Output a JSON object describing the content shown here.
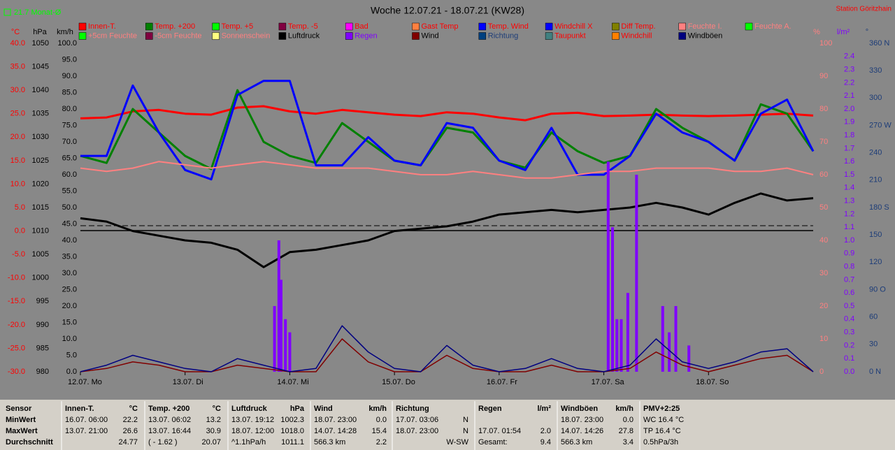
{
  "chart_data": {
    "type": "line",
    "title": "Woche 12.07.21 - 18.07.21 (KW28)",
    "station": "Station Göritzhain",
    "month_avg": "21.7 Monat-Ø",
    "xlim": [
      0,
      168
    ],
    "xticks": [
      {
        "value": 0,
        "label": "12.07. Mo"
      },
      {
        "value": 24,
        "label": "13.07. Di"
      },
      {
        "value": 48,
        "label": "14.07. Mi"
      },
      {
        "value": 72,
        "label": "15.07. Do"
      },
      {
        "value": 96,
        "label": "16.07. Fr"
      },
      {
        "value": 120,
        "label": "17.07. Sa"
      },
      {
        "value": 144,
        "label": "18.07. So"
      }
    ],
    "x": [
      0,
      6,
      12,
      18,
      24,
      30,
      36,
      42,
      48,
      54,
      60,
      66,
      72,
      78,
      84,
      90,
      96,
      102,
      108,
      114,
      120,
      126,
      132,
      138,
      144,
      150,
      156,
      162,
      168
    ],
    "grid": false,
    "yaxes": {
      "temp": {
        "unit": "°C",
        "color": "#ff0000",
        "lim": [
          -30,
          40
        ],
        "ticks": [
          {
            "value": 40,
            "label": "40.0"
          },
          {
            "value": 35,
            "label": "35.0"
          },
          {
            "value": 30,
            "label": "30.0"
          },
          {
            "value": 25,
            "label": "25.0"
          },
          {
            "value": 20,
            "label": "20.0"
          },
          {
            "value": 15,
            "label": "15.0"
          },
          {
            "value": 10,
            "label": "10.0"
          },
          {
            "value": 5,
            "label": "5.0"
          },
          {
            "value": 0,
            "label": "0.0"
          },
          {
            "value": -5,
            "label": "-5.0"
          },
          {
            "value": -10,
            "label": "-10.0"
          },
          {
            "value": -15,
            "label": "-15.0"
          },
          {
            "value": -20,
            "label": "-20.0"
          },
          {
            "value": -25,
            "label": "-25.0"
          },
          {
            "value": -30,
            "label": "-30.0"
          }
        ]
      },
      "pressure": {
        "unit": "hPa",
        "color": "#000000",
        "lim": [
          980,
          1050
        ],
        "ticks": [
          1050,
          1045,
          1040,
          1035,
          1030,
          1025,
          1020,
          1015,
          1010,
          1005,
          1000,
          995,
          990,
          985,
          980
        ]
      },
      "kmh": {
        "unit": "km/h",
        "color": "#000000",
        "lim": [
          0,
          100
        ],
        "ticks": [
          {
            "value": 100,
            "label": "100.0"
          },
          {
            "value": 95,
            "label": "95.0"
          },
          {
            "value": 90,
            "label": "90.0"
          },
          {
            "value": 85,
            "label": "85.0"
          },
          {
            "value": 80,
            "label": "80.0"
          },
          {
            "value": 75,
            "label": "75.0"
          },
          {
            "value": 70,
            "label": "70.0"
          },
          {
            "value": 65,
            "label": "65.0"
          },
          {
            "value": 60,
            "label": "60.0"
          },
          {
            "value": 55,
            "label": "55.0"
          },
          {
            "value": 50,
            "label": "50.0"
          },
          {
            "value": 45,
            "label": "45.0"
          },
          {
            "value": 40,
            "label": "40.0"
          },
          {
            "value": 35,
            "label": "35.0"
          },
          {
            "value": 30,
            "label": "30.0"
          },
          {
            "value": 25,
            "label": "25.0"
          },
          {
            "value": 20,
            "label": "20.0"
          },
          {
            "value": 15,
            "label": "15.0"
          },
          {
            "value": 10,
            "label": "10.0"
          },
          {
            "value": 5,
            "label": "5.0"
          },
          {
            "value": 0,
            "label": "0.0"
          }
        ]
      },
      "pct": {
        "unit": "%",
        "color": "#ff8080",
        "lim": [
          0,
          100
        ],
        "ticks": [
          100,
          90,
          80,
          70,
          60,
          50,
          40,
          30,
          20,
          10,
          0
        ]
      },
      "rain": {
        "unit": "l/m²",
        "color": "#8000ff",
        "lim": [
          0,
          2.5
        ],
        "ticks": [
          {
            "value": 2.4,
            "label": "2.4"
          },
          {
            "value": 2.3,
            "label": "2.3"
          },
          {
            "value": 2.2,
            "label": "2.2"
          },
          {
            "value": 2.1,
            "label": "2.1"
          },
          {
            "value": 2,
            "label": "2.0"
          },
          {
            "value": 1.9,
            "label": "1.9"
          },
          {
            "value": 1.8,
            "label": "1.8"
          },
          {
            "value": 1.7,
            "label": "1.7"
          },
          {
            "value": 1.6,
            "label": "1.6"
          },
          {
            "value": 1.5,
            "label": "1.5"
          },
          {
            "value": 1.4,
            "label": "1.4"
          },
          {
            "value": 1.3,
            "label": "1.3"
          },
          {
            "value": 1.2,
            "label": "1.2"
          },
          {
            "value": 1.1,
            "label": "1.1"
          },
          {
            "value": 1,
            "label": "1.0"
          },
          {
            "value": 0.9,
            "label": "0.9"
          },
          {
            "value": 0.8,
            "label": "0.8"
          },
          {
            "value": 0.7,
            "label": "0.7"
          },
          {
            "value": 0.6,
            "label": "0.6"
          },
          {
            "value": 0.5,
            "label": "0.5"
          },
          {
            "value": 0.4,
            "label": "0.4"
          },
          {
            "value": 0.3,
            "label": "0.3"
          },
          {
            "value": 0.2,
            "label": "0.2"
          },
          {
            "value": 0.1,
            "label": "0.1"
          },
          {
            "value": 0,
            "label": "0.0"
          }
        ]
      },
      "dir": {
        "unit": "°",
        "color": "#1c3c78",
        "lim": [
          0,
          360
        ],
        "ticks": [
          {
            "value": 360,
            "label": "360 N"
          },
          330,
          300,
          {
            "value": 270,
            "label": "270 W"
          },
          240,
          210,
          {
            "value": 180,
            "label": "180 S"
          },
          150,
          120,
          {
            "value": 90,
            "label": "90 O"
          },
          60,
          30,
          {
            "value": 0,
            "label": "0 N"
          }
        ]
      }
    },
    "series": [
      {
        "name": "Innen-T.",
        "color": "#ff0000",
        "text_color": "#ff0000",
        "axis": "temp",
        "line_width": 3,
        "values": [
          24,
          24.2,
          25.5,
          25.8,
          25,
          24.8,
          26.3,
          26.6,
          25.5,
          25,
          25.8,
          25.3,
          24.8,
          24.5,
          25.3,
          25,
          24.2,
          23.6,
          25,
          25.2,
          24.5,
          24.6,
          24.8,
          24.6,
          24.5,
          24.6,
          24.8,
          25,
          24.6
        ]
      },
      {
        "name": "Temp. +200",
        "color": "#008000",
        "text_color": "#ff0000",
        "axis": "temp",
        "line_width": 3,
        "values": [
          16,
          14.5,
          26,
          21,
          16,
          13.2,
          30,
          19,
          16,
          14.5,
          23,
          19,
          15,
          14,
          22,
          21,
          15,
          13.5,
          21,
          17,
          14.5,
          16,
          26,
          22,
          19,
          15,
          27,
          25,
          17
        ]
      },
      {
        "name": "Temp. +5",
        "color": "#00ff00",
        "text_color": "#ff0000"
      },
      {
        "name": "Temp. -5",
        "color": "#800040",
        "text_color": "#ff0000"
      },
      {
        "name": "Bad",
        "color": "#ff00ff",
        "text_color": "#ff0000"
      },
      {
        "name": "Gast Temp",
        "color": "#ff8040",
        "text_color": "#ff0000"
      },
      {
        "name": "Temp. Wind",
        "color": "#0000ff",
        "text_color": "#ff0000",
        "axis": "temp",
        "line_width": 3,
        "values": [
          16,
          16,
          31,
          21,
          13,
          11,
          29,
          32,
          32,
          14,
          14,
          20,
          15,
          14,
          23,
          22,
          15,
          13,
          22,
          12,
          12,
          16,
          25,
          21,
          19,
          15,
          25,
          28,
          17
        ]
      },
      {
        "name": "Windchill X",
        "color": "#0000ff",
        "text_color": "#ff0000"
      },
      {
        "name": "Diff Temp.",
        "color": "#808000",
        "text_color": "#ff0000"
      },
      {
        "name": "Feuchte I.",
        "color": "#ff8080",
        "text_color": "#ff8080",
        "axis": "pct",
        "line_width": 2,
        "values": [
          62,
          61,
          62,
          64,
          63,
          62,
          63,
          64,
          63,
          62,
          62,
          62,
          61,
          60,
          60,
          61,
          60,
          59,
          59,
          60,
          61,
          61,
          62,
          62,
          62,
          61,
          61,
          62,
          60
        ]
      },
      {
        "name": "Feuchte A.",
        "color": "#00ff00",
        "text_color": "#ff8080"
      },
      {
        "name": "+5cm Feuchte",
        "color": "#00ff00",
        "text_color": "#ff8080"
      },
      {
        "name": "-5cm Feuchte",
        "color": "#800040",
        "text_color": "#ff8080"
      },
      {
        "name": "Sonnenschein",
        "color": "#ffff80",
        "text_color": "#ff8080"
      },
      {
        "name": "Luftdruck",
        "color": "#000000",
        "text_color": "#000000",
        "axis": "pressure",
        "line_width": 3,
        "values": [
          1012.7,
          1012,
          1010,
          1009,
          1008,
          1007.5,
          1006,
          1002.3,
          1005.5,
          1006,
          1007,
          1008,
          1010,
          1010.5,
          1011,
          1012,
          1013.5,
          1014,
          1014.5,
          1014,
          1014.5,
          1015,
          1016,
          1015,
          1013.5,
          1016,
          1018,
          1016.5,
          1017
        ]
      },
      {
        "name": "Regen",
        "color": "#8000ff",
        "text_color": "#8000ff",
        "axis": "rain",
        "style": "bar",
        "x": [
          44.5,
          45.5,
          46,
          47,
          48,
          121,
          122,
          123,
          124,
          125.5,
          127.5,
          133.5,
          135,
          136.5,
          139.5
        ],
        "values": [
          0.5,
          1,
          0.7,
          0.4,
          0.3,
          1.6,
          1.1,
          0.4,
          0.4,
          0.6,
          1.5,
          0.5,
          0.3,
          0.5,
          0.2
        ]
      },
      {
        "name": "Wind",
        "color": "#800000",
        "text_color": "#000000",
        "axis": "kmh",
        "line_width": 1.5,
        "values": [
          0,
          1,
          3,
          2,
          0,
          0,
          2,
          1,
          0,
          0,
          10,
          3,
          0,
          0,
          5,
          1,
          0,
          0,
          2,
          0,
          0,
          1,
          6,
          2,
          0,
          2,
          4,
          5,
          0
        ]
      },
      {
        "name": "Richtung",
        "color": "#004080",
        "text_color": "#1c3c78"
      },
      {
        "name": "Taupunkt",
        "color": "#408080",
        "text_color": "#ff0000"
      },
      {
        "name": "Windchill",
        "color": "#ff8000",
        "text_color": "#ff0000"
      },
      {
        "name": "Windböen",
        "color": "#000080",
        "text_color": "#000000",
        "axis": "kmh",
        "line_width": 1.5,
        "values": [
          0,
          2,
          5,
          3,
          1,
          0,
          4,
          2,
          0,
          1,
          14,
          6,
          1,
          0,
          8,
          2,
          0,
          1,
          4,
          1,
          0,
          2,
          10,
          3,
          1,
          3,
          6,
          7,
          0
        ]
      }
    ]
  },
  "stats": {
    "row_labels": [
      "Sensor",
      "MinWert",
      "MaxWert",
      "Durchschnitt"
    ],
    "groups": [
      {
        "title": "Innen-T.",
        "unit": "°C",
        "cells": [
          [
            "16.07.  06:00",
            "22.2"
          ],
          [
            "13.07.  21:00",
            "26.6"
          ],
          [
            null,
            "24.77"
          ]
        ]
      },
      {
        "title": "Temp. +200",
        "unit": "°C",
        "cells": [
          [
            "13.07.  06:02",
            "13.2"
          ],
          [
            "13.07.  16:44",
            "30.9"
          ],
          [
            "( - 1.62 )",
            "20.07"
          ]
        ]
      },
      {
        "title": "Luftdruck",
        "unit": "hPa",
        "cells": [
          [
            "13.07.  19:12",
            "1002.3"
          ],
          [
            "18.07.  12:00",
            "1018.0"
          ],
          [
            "^1.1hPa/h",
            "1011.1"
          ]
        ]
      },
      {
        "title": "Wind",
        "unit": "km/h",
        "cells": [
          [
            "18.07.  23:00",
            "0.0"
          ],
          [
            "14.07.  14:28",
            "15.4"
          ],
          [
            "566.3 km",
            "2.2"
          ]
        ]
      },
      {
        "title": "Richtung",
        "cells": [
          [
            "17.07.  03:06",
            "N"
          ],
          [
            "18.07.  23:00",
            "N"
          ],
          [
            null,
            "W-SW"
          ]
        ]
      },
      {
        "title": "Regen",
        "unit": "l/m²",
        "cells": [
          [
            null,
            null
          ],
          [
            "17.07.  01:54",
            "2.0"
          ],
          [
            "Gesamt:",
            "9.4"
          ]
        ]
      },
      {
        "title": "Windböen",
        "unit": "km/h",
        "cells": [
          [
            "18.07.  23:00",
            "0.0"
          ],
          [
            "14.07.  14:26",
            "27.8"
          ],
          [
            "566.3 km",
            "3.4"
          ]
        ]
      },
      {
        "title": "PMV+2:25",
        "cells": [
          [
            "WC 16.4 °C",
            null
          ],
          [
            "TP 16.4 °C",
            null
          ],
          [
            "0.5hPa/3h",
            null
          ]
        ]
      }
    ]
  }
}
